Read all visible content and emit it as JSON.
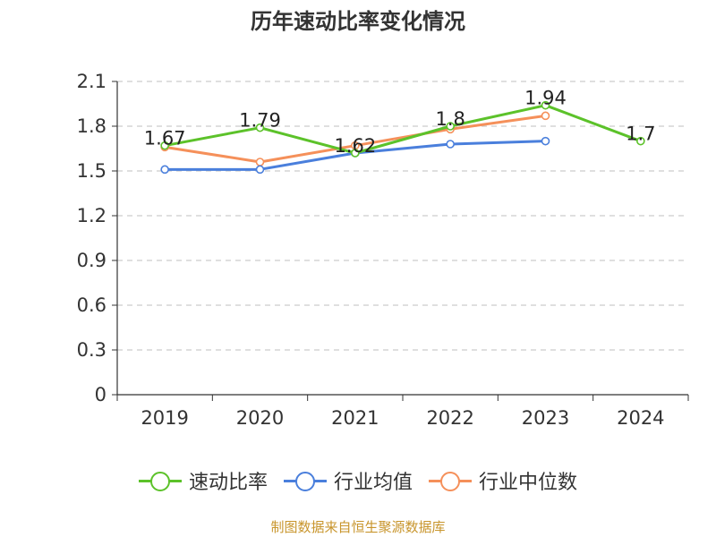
{
  "chart_data": {
    "type": "line",
    "title": "历年速动比率变化情况",
    "categories": [
      "2019",
      "2020",
      "2021",
      "2022",
      "2023",
      "2024"
    ],
    "ylim": [
      0,
      2.1
    ],
    "yticks": [
      "0",
      "0.3",
      "0.6",
      "0.9",
      "1.2",
      "1.5",
      "1.8",
      "2.1"
    ],
    "grid": true,
    "legend_position": "bottom",
    "series": [
      {
        "name": "速动比率",
        "color": "#5cc22a",
        "values": [
          1.67,
          1.79,
          1.62,
          1.8,
          1.94,
          1.7
        ],
        "labels": [
          "1.67",
          "1.79",
          "1.62",
          "1.8",
          "1.94",
          "1.7"
        ],
        "show_labels": true
      },
      {
        "name": "行业均值",
        "color": "#4a7fdc",
        "values": [
          1.51,
          1.51,
          1.62,
          1.68,
          1.7,
          null
        ],
        "show_labels": false
      },
      {
        "name": "行业中位数",
        "color": "#f5905a",
        "values": [
          1.66,
          1.56,
          1.67,
          1.78,
          1.87,
          null
        ],
        "show_labels": false
      }
    ]
  },
  "source": "制图数据来自恒生聚源数据库"
}
